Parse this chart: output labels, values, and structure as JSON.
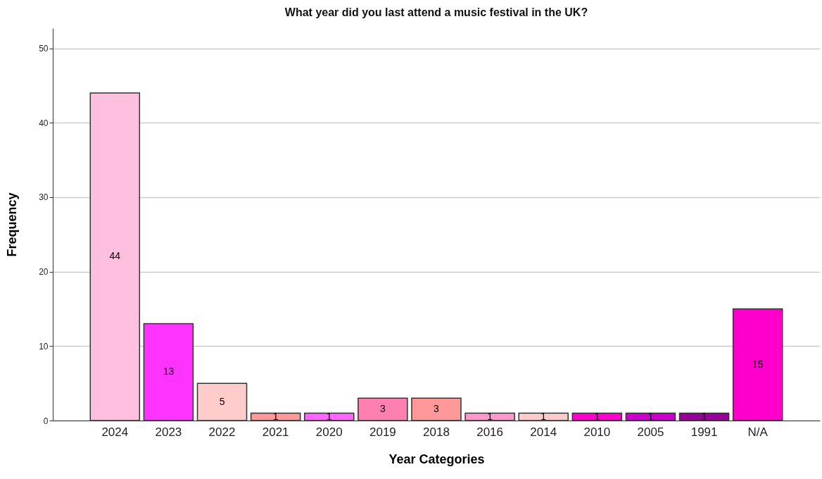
{
  "chart_data": {
    "type": "bar",
    "title": "What year did you last attend a music festival in the UK?",
    "xlabel": "Year Categories",
    "ylabel": "Frequency",
    "categories": [
      "2024",
      "2023",
      "2022",
      "2021",
      "2020",
      "2019",
      "2018",
      "2016",
      "2014",
      "2010",
      "2005",
      "1991",
      "N/A"
    ],
    "values": [
      44,
      13,
      5,
      1,
      1,
      3,
      3,
      1,
      1,
      1,
      1,
      1,
      15
    ],
    "colors": [
      "#ffc0e0",
      "#ff33ff",
      "#ffcccc",
      "#ff9999",
      "#ff66ff",
      "#ff80b0",
      "#ff9999",
      "#ff99cc",
      "#ffcccc",
      "#ff00cc",
      "#cc00cc",
      "#990099",
      "#ff00cc"
    ],
    "ylim": [
      0,
      52.7
    ],
    "yticks": [
      0,
      10,
      20,
      30,
      40,
      50
    ],
    "grid": "y",
    "data_labels": true
  }
}
